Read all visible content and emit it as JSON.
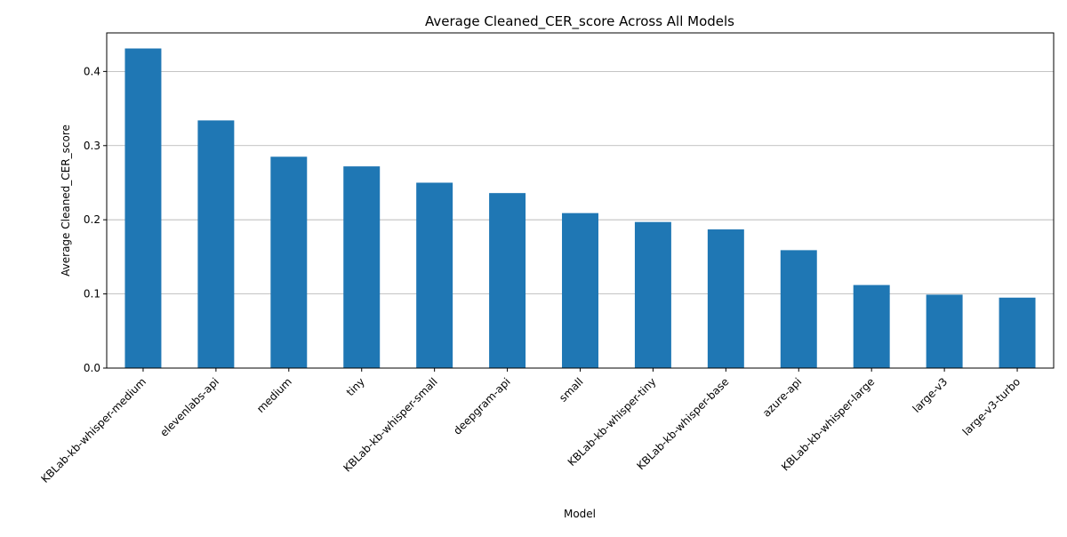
{
  "chart_data": {
    "type": "bar",
    "title": "Average Cleaned_CER_score Across All Models",
    "xlabel": "Model",
    "ylabel": "Average Cleaned_CER_score",
    "categories": [
      "KBLab-kb-whisper-medium",
      "elevenlabs-api",
      "medium",
      "tiny",
      "KBLab-kb-whisper-small",
      "deepgram-api",
      "small",
      "KBLab-kb-whisper-tiny",
      "KBLab-kb-whisper-base",
      "azure-api",
      "KBLab-kb-whisper-large",
      "large-v3",
      "large-v3-turbo"
    ],
    "values": [
      0.431,
      0.334,
      0.285,
      0.272,
      0.25,
      0.236,
      0.209,
      0.197,
      0.187,
      0.159,
      0.112,
      0.099,
      0.095
    ],
    "ylim": [
      0,
      0.452
    ],
    "yticks": [
      0.0,
      0.1,
      0.2,
      0.3,
      0.4
    ],
    "ytick_labels": [
      "0.0",
      "0.1",
      "0.2",
      "0.3",
      "0.4"
    ],
    "grid": "horizontal",
    "legend": "none",
    "bar_color": "#1f77b4",
    "grid_color": "#b0b0b0"
  }
}
